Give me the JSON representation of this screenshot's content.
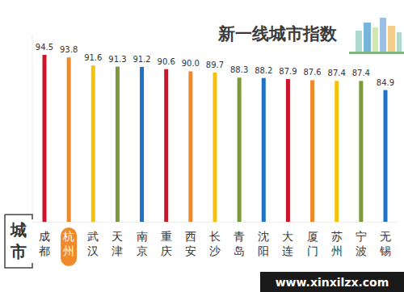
{
  "chart_data": {
    "type": "bar",
    "title": "新一线城市指数",
    "x_label": "城市",
    "categories": [
      "成都",
      "杭州",
      "武汉",
      "天津",
      "南京",
      "重庆",
      "西安",
      "长沙",
      "青岛",
      "沈阳",
      "大连",
      "厦门",
      "苏州",
      "宁波",
      "无锡"
    ],
    "values": [
      94.5,
      93.8,
      91.6,
      91.3,
      91.2,
      90.6,
      90.0,
      89.7,
      88.3,
      88.2,
      87.9,
      87.6,
      87.4,
      87.4,
      84.9
    ],
    "value_labels": [
      "94.5",
      "93.8",
      "91.6",
      "91.3",
      "91.2",
      "90.6",
      "90.0",
      "89.7",
      "88.3",
      "88.2",
      "87.9",
      "87.6",
      "87.4",
      "87.4",
      "84.9"
    ],
    "colors": [
      "#c9162b",
      "#f0892a",
      "#f4c20d",
      "#7c9a3c",
      "#1f72c4",
      "#c9162b",
      "#f0892a",
      "#f4c20d",
      "#7c9a3c",
      "#1f72c4",
      "#c9162b",
      "#f0892a",
      "#f4c20d",
      "#7c9a3c",
      "#1f72c4"
    ],
    "ylim": [
      49,
      100
    ],
    "yticks": [],
    "grid": false,
    "data_labels": true,
    "tick_labels": "x",
    "source": "www.xinxilzx.com"
  }
}
